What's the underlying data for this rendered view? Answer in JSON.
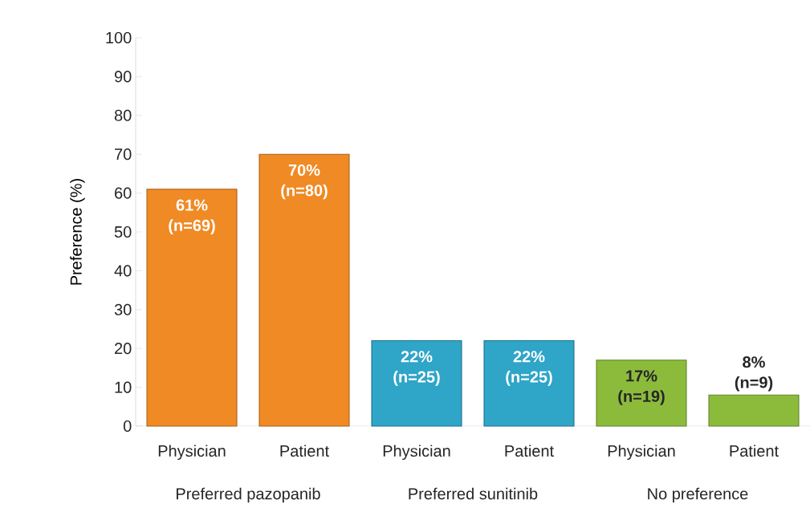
{
  "chart_data": {
    "type": "bar",
    "ylabel": "Preference (%)",
    "categories": [
      "Physician",
      "Patient",
      "Physician",
      "Patient",
      "Physician",
      "Patient"
    ],
    "values": [
      61,
      70,
      22,
      22,
      17,
      8
    ],
    "colors": [
      "#f08a24",
      "#f08a24",
      "#2fa5c8",
      "#2fa5c8",
      "#8cbb3c",
      "#8cbb3c"
    ],
    "value_labels": [
      "61% (n=69)",
      "70% (n=80)",
      "22% (n=25)",
      "22% (n=25)",
      "17% (n=19)",
      "8% (n=9)"
    ],
    "annotations": [
      "Preferred pazopanib",
      "Preferred sunitinib",
      "No preference"
    ],
    "ylim": [
      0,
      100
    ],
    "yticks": [
      0,
      10,
      20,
      30,
      40,
      50,
      60,
      70,
      80,
      90,
      100
    ],
    "grid": false
  }
}
